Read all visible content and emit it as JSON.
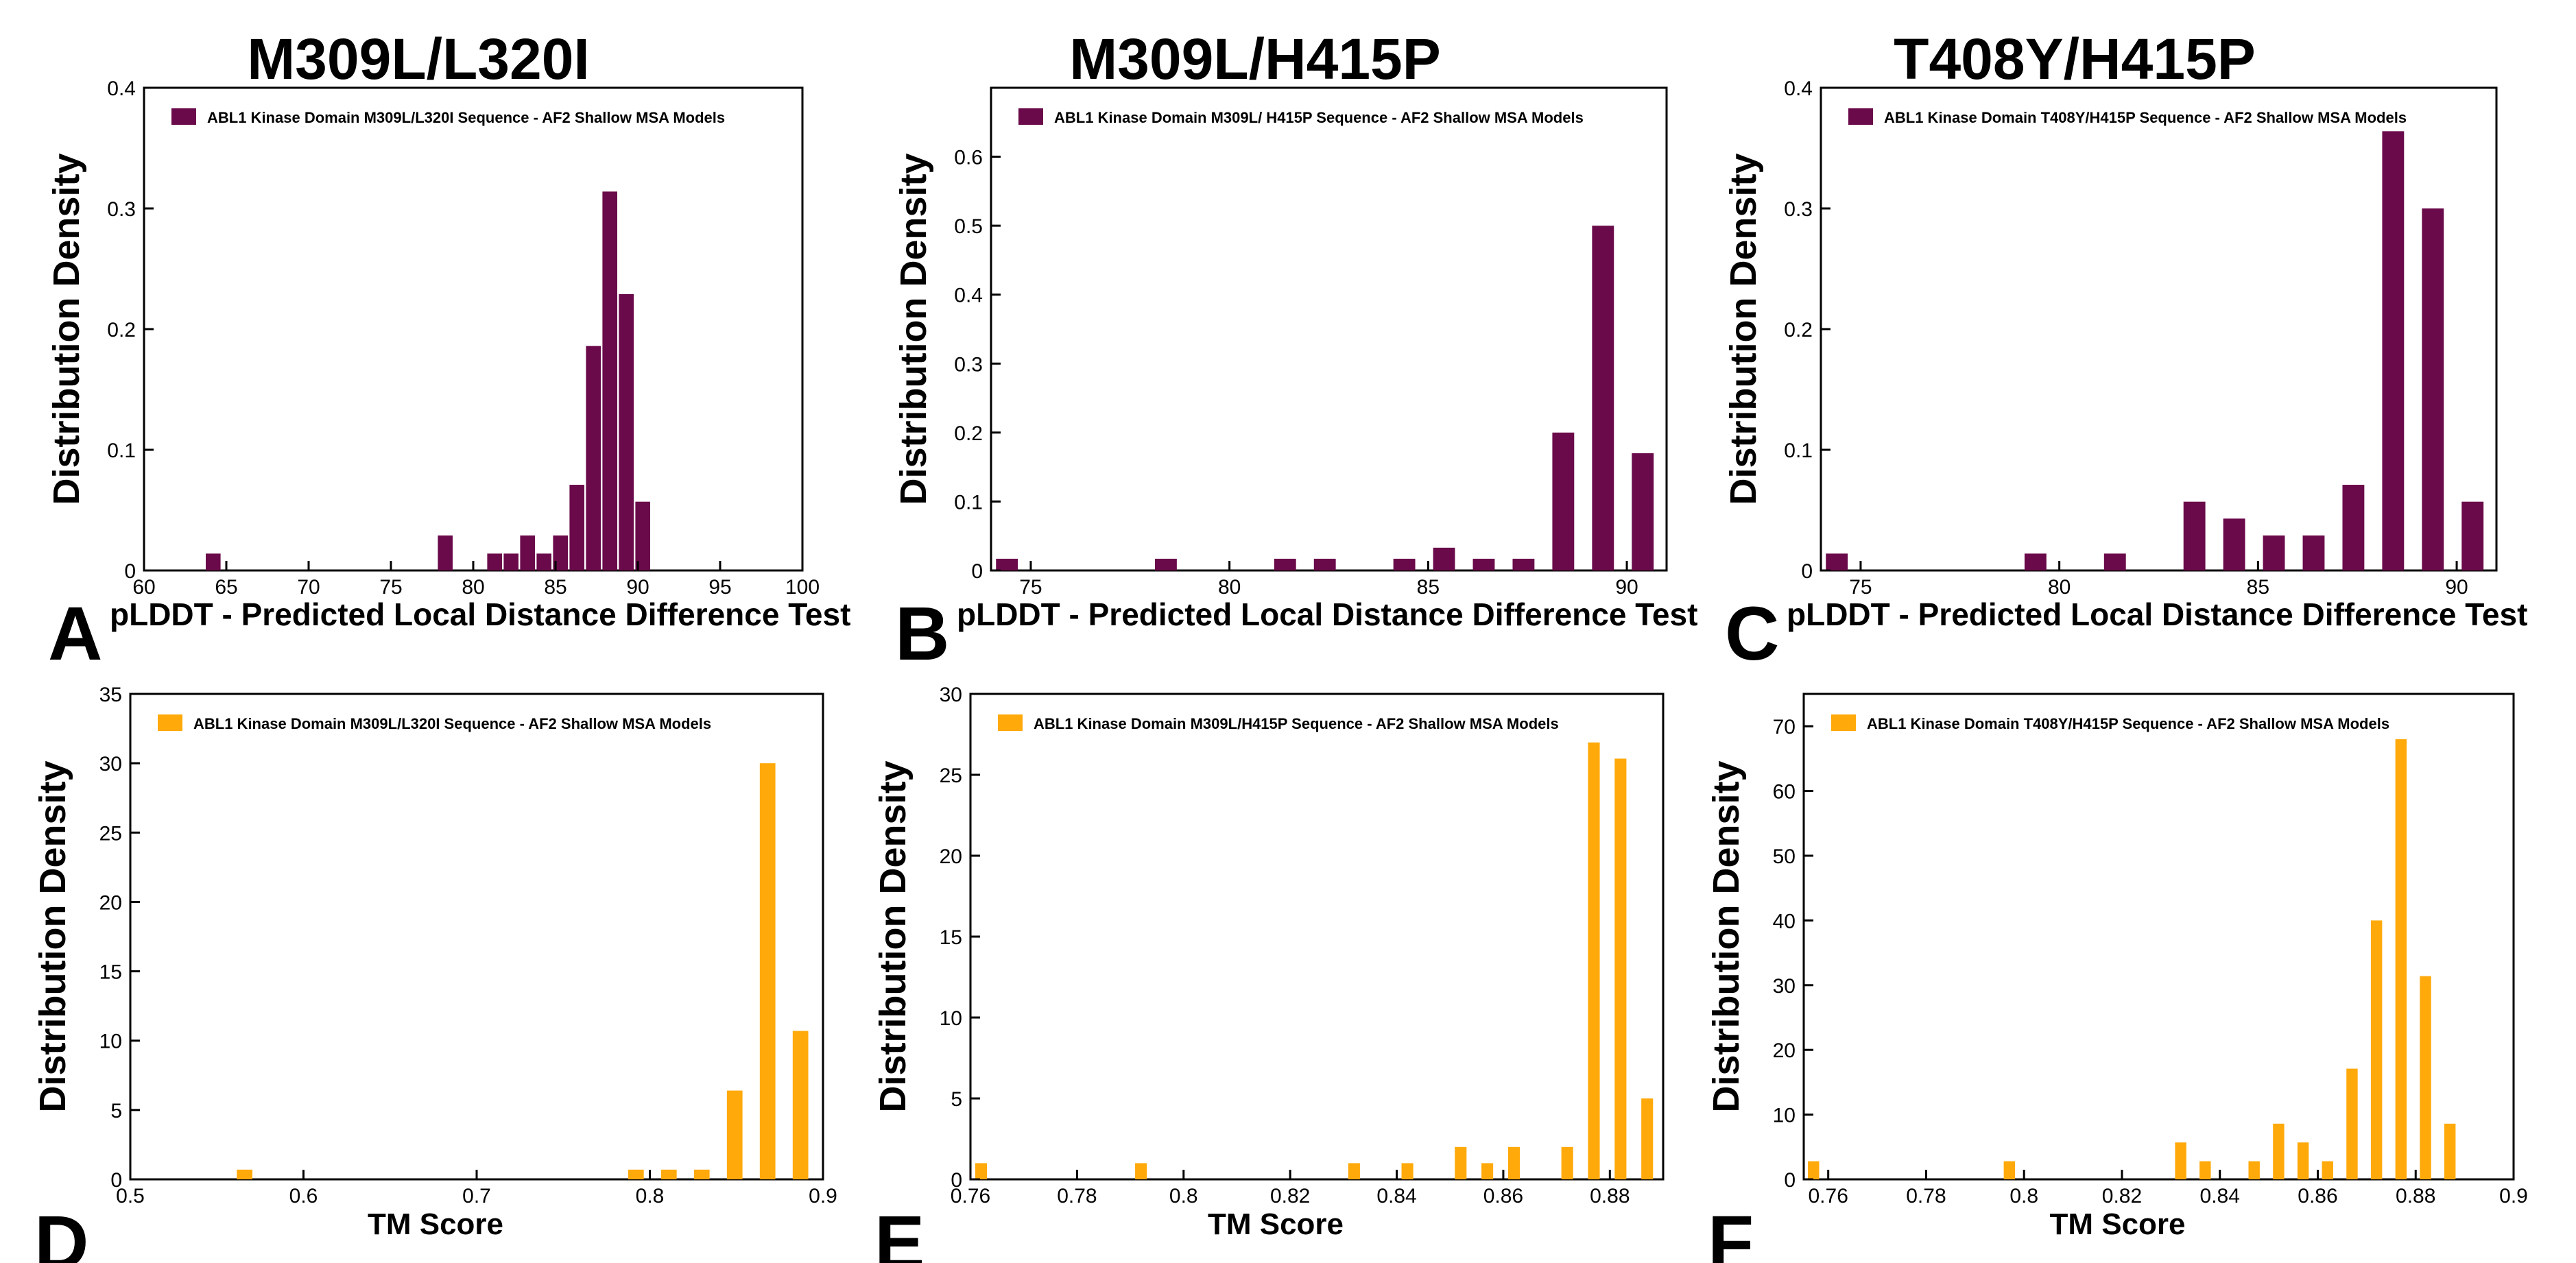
{
  "panel_titles": [
    "M309L/L320I",
    "M309L/H415P",
    "T408Y/H415P"
  ],
  "colors": {
    "plddt": "#6a0a4a",
    "tm": "#ffa90a"
  },
  "chart_data": [
    {
      "panel": "A",
      "type": "bar",
      "color": "#6a0a4a",
      "xlabel": "pLDDT - Predicted Local Distance Difference Test",
      "ylabel": "Distribution Density",
      "legend": "ABL1 Kinase Domain M309L/L320I Sequence - AF2 Shallow MSA Models",
      "xlim": [
        60,
        100
      ],
      "ylim": [
        0,
        0.4
      ],
      "xticks": [
        60,
        65,
        70,
        75,
        80,
        85,
        90,
        95,
        100
      ],
      "xtick_labels": [
        "60",
        "65",
        "70",
        "75",
        "80",
        "85",
        "90",
        "95",
        "100"
      ],
      "yticks": [
        0,
        0.1,
        0.2,
        0.3,
        0.4
      ],
      "ytick_labels": [
        "0",
        "0.1",
        "0.2",
        "0.3",
        "0.4"
      ],
      "bar_width": 0.9,
      "x": [
        64.2,
        78.3,
        81.3,
        82.3,
        83.3,
        84.3,
        85.3,
        86.3,
        87.3,
        88.3,
        89.3,
        90.3
      ],
      "values": [
        0.014,
        0.029,
        0.014,
        0.014,
        0.029,
        0.014,
        0.029,
        0.071,
        0.186,
        0.314,
        0.229,
        0.057
      ]
    },
    {
      "panel": "B",
      "type": "bar",
      "color": "#6a0a4a",
      "xlabel": "pLDDT - Predicted Local Distance Difference Test",
      "ylabel": "Distribution Density",
      "legend": "ABL1 Kinase Domain M309L/ H415P Sequence - AF2 Shallow MSA Models",
      "xlim": [
        74,
        91
      ],
      "ylim": [
        0,
        0.7
      ],
      "xticks": [
        75,
        80,
        85,
        90
      ],
      "xtick_labels": [
        "75",
        "80",
        "85",
        "90"
      ],
      "yticks": [
        0,
        0.1,
        0.2,
        0.3,
        0.4,
        0.5,
        0.6
      ],
      "ytick_labels": [
        "0",
        "0.1",
        "0.2",
        "0.3",
        "0.4",
        "0.5",
        "0.6"
      ],
      "bar_width": 0.55,
      "x": [
        74.4,
        78.4,
        81.4,
        82.4,
        84.4,
        85.4,
        86.4,
        87.4,
        88.4,
        89.4,
        90.4
      ],
      "values": [
        0.017,
        0.017,
        0.017,
        0.017,
        0.017,
        0.033,
        0.017,
        0.017,
        0.2,
        0.5,
        0.17
      ]
    },
    {
      "panel": "C",
      "type": "bar",
      "color": "#6a0a4a",
      "xlabel": "pLDDT - Predicted Local Distance Difference Test",
      "ylabel": "Distribution Density",
      "legend": "ABL1 Kinase Domain T408Y/H415P Sequence - AF2 Shallow MSA Models",
      "xlim": [
        74,
        91
      ],
      "ylim": [
        0,
        0.4
      ],
      "xticks": [
        75,
        80,
        85,
        90
      ],
      "xtick_labels": [
        "75",
        "80",
        "85",
        "90"
      ],
      "yticks": [
        0,
        0.1,
        0.2,
        0.3,
        0.4
      ],
      "ytick_labels": [
        "0",
        "0.1",
        "0.2",
        "0.3",
        "0.4"
      ],
      "bar_width": 0.55,
      "x": [
        74.4,
        79.4,
        81.4,
        83.4,
        84.4,
        85.4,
        86.4,
        87.4,
        88.4,
        89.4,
        90.4
      ],
      "values": [
        0.014,
        0.014,
        0.014,
        0.057,
        0.043,
        0.029,
        0.029,
        0.071,
        0.364,
        0.3,
        0.057
      ]
    },
    {
      "panel": "D",
      "type": "bar",
      "color": "#ffa90a",
      "xlabel": "TM Score",
      "ylabel": "Distribution Density",
      "legend": "ABL1 Kinase Domain M309L/L320I Sequence  - AF2 Shallow MSA Models",
      "xlim": [
        0.5,
        0.9
      ],
      "ylim": [
        0,
        35
      ],
      "xticks": [
        0.5,
        0.6,
        0.7,
        0.8,
        0.9
      ],
      "xtick_labels": [
        "0.5",
        "0.6",
        "0.7",
        "0.8",
        "0.9"
      ],
      "yticks": [
        0,
        5,
        10,
        15,
        20,
        25,
        30,
        35
      ],
      "ytick_labels": [
        "0",
        "5",
        "10",
        "15",
        "20",
        "25",
        "30",
        "35"
      ],
      "bar_width": 0.009,
      "x": [
        0.566,
        0.792,
        0.811,
        0.83,
        0.849,
        0.868,
        0.887
      ],
      "values": [
        0.7,
        0.7,
        0.7,
        0.7,
        6.4,
        30.0,
        10.7
      ]
    },
    {
      "panel": "E",
      "type": "bar",
      "color": "#ffa90a",
      "xlabel": "TM Score",
      "ylabel": "Distribution Density",
      "legend": "ABL1 Kinase Domain M309L/H415P Sequence - AF2 Shallow MSA Models",
      "xlim": [
        0.76,
        0.89
      ],
      "ylim": [
        0,
        30
      ],
      "xticks": [
        0.76,
        0.78,
        0.8,
        0.82,
        0.84,
        0.86,
        0.88
      ],
      "xtick_labels": [
        "0.76",
        "0.78",
        "0.8",
        "0.82",
        "0.84",
        "0.86",
        "0.88"
      ],
      "yticks": [
        0,
        5,
        10,
        15,
        20,
        25,
        30
      ],
      "ytick_labels": [
        "0",
        "5",
        "10",
        "15",
        "20",
        "25",
        "30"
      ],
      "bar_width": 0.0022,
      "x": [
        0.762,
        0.792,
        0.832,
        0.842,
        0.852,
        0.857,
        0.862,
        0.872,
        0.877,
        0.882,
        0.887
      ],
      "values": [
        1.0,
        1.0,
        1.0,
        1.0,
        2.0,
        1.0,
        2.0,
        2.0,
        27.0,
        26.0,
        5.0
      ]
    },
    {
      "panel": "F",
      "type": "bar",
      "color": "#ffa90a",
      "xlabel": "TM Score",
      "ylabel": "Distribution Density",
      "legend": "ABL1 Kinase Domain T408Y/H415P Sequence  - AF2 Shallow MSA Models",
      "xlim": [
        0.755,
        0.9
      ],
      "ylim": [
        0,
        75
      ],
      "xticks": [
        0.76,
        0.78,
        0.8,
        0.82,
        0.84,
        0.86,
        0.88,
        0.9
      ],
      "xtick_labels": [
        "0.76",
        "0.78",
        "0.8",
        "0.82",
        "0.84",
        "0.86",
        "0.88",
        "0.9"
      ],
      "yticks": [
        0,
        10,
        20,
        30,
        40,
        50,
        60,
        70
      ],
      "ytick_labels": [
        "0",
        "10",
        "20",
        "30",
        "40",
        "50",
        "60",
        "70"
      ],
      "bar_width": 0.0023,
      "x": [
        0.757,
        0.797,
        0.832,
        0.837,
        0.847,
        0.852,
        0.857,
        0.862,
        0.867,
        0.872,
        0.877,
        0.882,
        0.887
      ],
      "values": [
        2.8,
        2.8,
        5.7,
        2.8,
        2.8,
        8.6,
        5.7,
        2.8,
        17.1,
        40.0,
        68.0,
        31.4,
        8.6
      ]
    }
  ]
}
